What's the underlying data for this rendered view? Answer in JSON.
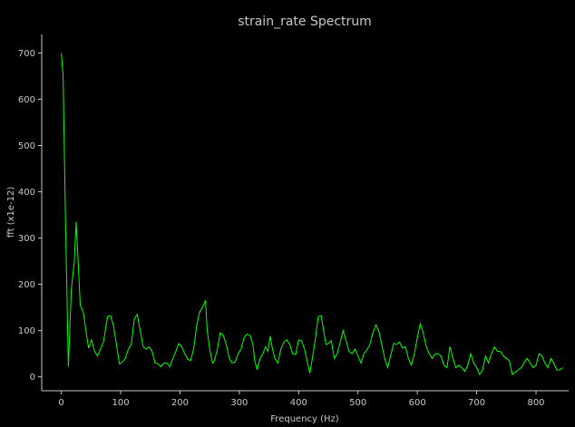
{
  "chart_data": {
    "type": "line",
    "title": "strain_rate Spectrum",
    "xlabel": "Frequency (Hz)",
    "ylabel": "fft (x1e-12)",
    "xlim": [
      -33,
      855
    ],
    "ylim": [
      -30,
      740
    ],
    "xticks": [
      0,
      100,
      200,
      300,
      400,
      500,
      600,
      700,
      800
    ],
    "yticks": [
      0,
      100,
      200,
      300,
      400,
      500,
      600,
      700
    ],
    "grid": false,
    "colors": {
      "background": "#000000",
      "axis": "#c8c8c8",
      "series": "#00ff00"
    },
    "series": [
      {
        "values": [
          [
            0,
            700
          ],
          [
            3,
            650
          ],
          [
            7,
            340
          ],
          [
            12,
            22
          ],
          [
            17,
            190
          ],
          [
            22,
            250
          ],
          [
            25,
            335
          ],
          [
            28,
            260
          ],
          [
            32,
            155
          ],
          [
            37,
            140
          ],
          [
            42,
            95
          ],
          [
            46,
            62
          ],
          [
            51,
            80
          ],
          [
            56,
            55
          ],
          [
            61,
            45
          ],
          [
            66,
            60
          ],
          [
            71,
            75
          ],
          [
            78,
            130
          ],
          [
            83,
            132
          ],
          [
            88,
            110
          ],
          [
            93,
            70
          ],
          [
            98,
            28
          ],
          [
            103,
            32
          ],
          [
            108,
            40
          ],
          [
            113,
            60
          ],
          [
            118,
            70
          ],
          [
            123,
            125
          ],
          [
            128,
            135
          ],
          [
            133,
            100
          ],
          [
            138,
            65
          ],
          [
            143,
            60
          ],
          [
            148,
            65
          ],
          [
            153,
            55
          ],
          [
            158,
            30
          ],
          [
            163,
            28
          ],
          [
            168,
            22
          ],
          [
            173,
            30
          ],
          [
            178,
            30
          ],
          [
            183,
            22
          ],
          [
            188,
            40
          ],
          [
            193,
            55
          ],
          [
            198,
            72
          ],
          [
            203,
            65
          ],
          [
            208,
            50
          ],
          [
            213,
            38
          ],
          [
            218,
            35
          ],
          [
            223,
            60
          ],
          [
            228,
            110
          ],
          [
            233,
            140
          ],
          [
            238,
            150
          ],
          [
            243,
            165
          ],
          [
            246,
            100
          ],
          [
            250,
            60
          ],
          [
            255,
            30
          ],
          [
            258,
            35
          ],
          [
            263,
            60
          ],
          [
            268,
            95
          ],
          [
            273,
            90
          ],
          [
            278,
            70
          ],
          [
            283,
            40
          ],
          [
            288,
            30
          ],
          [
            293,
            32
          ],
          [
            298,
            50
          ],
          [
            303,
            60
          ],
          [
            308,
            85
          ],
          [
            313,
            92
          ],
          [
            318,
            90
          ],
          [
            323,
            70
          ],
          [
            326,
            35
          ],
          [
            330,
            15
          ],
          [
            335,
            40
          ],
          [
            340,
            50
          ],
          [
            344,
            65
          ],
          [
            348,
            55
          ],
          [
            352,
            88
          ],
          [
            356,
            60
          ],
          [
            360,
            40
          ],
          [
            365,
            30
          ],
          [
            370,
            60
          ],
          [
            375,
            75
          ],
          [
            380,
            80
          ],
          [
            385,
            70
          ],
          [
            390,
            50
          ],
          [
            395,
            48
          ],
          [
            400,
            80
          ],
          [
            405,
            78
          ],
          [
            410,
            60
          ],
          [
            415,
            30
          ],
          [
            419,
            8
          ],
          [
            423,
            40
          ],
          [
            428,
            80
          ],
          [
            433,
            130
          ],
          [
            438,
            132
          ],
          [
            442,
            100
          ],
          [
            446,
            70
          ],
          [
            450,
            72
          ],
          [
            455,
            78
          ],
          [
            460,
            40
          ],
          [
            465,
            50
          ],
          [
            470,
            75
          ],
          [
            475,
            100
          ],
          [
            480,
            78
          ],
          [
            485,
            55
          ],
          [
            490,
            50
          ],
          [
            495,
            60
          ],
          [
            500,
            45
          ],
          [
            505,
            30
          ],
          [
            510,
            50
          ],
          [
            515,
            58
          ],
          [
            520,
            70
          ],
          [
            525,
            95
          ],
          [
            530,
            112
          ],
          [
            535,
            100
          ],
          [
            540,
            70
          ],
          [
            545,
            40
          ],
          [
            550,
            20
          ],
          [
            555,
            45
          ],
          [
            560,
            72
          ],
          [
            565,
            70
          ],
          [
            570,
            75
          ],
          [
            575,
            62
          ],
          [
            580,
            65
          ],
          [
            585,
            40
          ],
          [
            590,
            25
          ],
          [
            595,
            50
          ],
          [
            600,
            85
          ],
          [
            605,
            115
          ],
          [
            610,
            95
          ],
          [
            615,
            65
          ],
          [
            620,
            50
          ],
          [
            625,
            40
          ],
          [
            630,
            50
          ],
          [
            635,
            50
          ],
          [
            640,
            45
          ],
          [
            645,
            25
          ],
          [
            650,
            20
          ],
          [
            655,
            65
          ],
          [
            660,
            40
          ],
          [
            665,
            20
          ],
          [
            670,
            25
          ],
          [
            675,
            20
          ],
          [
            680,
            12
          ],
          [
            685,
            25
          ],
          [
            690,
            50
          ],
          [
            695,
            30
          ],
          [
            700,
            20
          ],
          [
            705,
            5
          ],
          [
            710,
            15
          ],
          [
            715,
            45
          ],
          [
            720,
            30
          ],
          [
            725,
            50
          ],
          [
            730,
            65
          ],
          [
            735,
            55
          ],
          [
            740,
            55
          ],
          [
            745,
            45
          ],
          [
            750,
            40
          ],
          [
            755,
            35
          ],
          [
            760,
            5
          ],
          [
            765,
            10
          ],
          [
            770,
            15
          ],
          [
            775,
            20
          ],
          [
            780,
            30
          ],
          [
            785,
            40
          ],
          [
            790,
            30
          ],
          [
            795,
            20
          ],
          [
            800,
            25
          ],
          [
            805,
            50
          ],
          [
            810,
            45
          ],
          [
            815,
            30
          ],
          [
            820,
            20
          ],
          [
            825,
            40
          ],
          [
            830,
            30
          ],
          [
            835,
            15
          ],
          [
            840,
            15
          ],
          [
            845,
            20
          ]
        ]
      }
    ]
  }
}
